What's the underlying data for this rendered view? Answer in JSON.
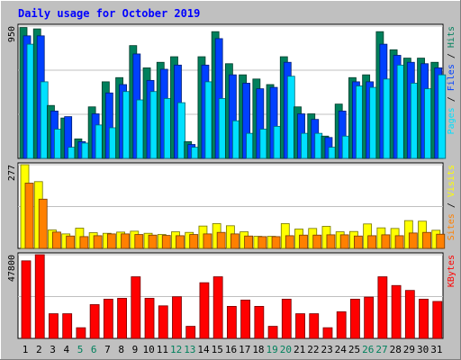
{
  "title": "Daily usage for October 2019",
  "colors": {
    "background": "#c0c0c0",
    "plot_bg": "#ffffff",
    "title": "#0000ff",
    "hits": "#00805c",
    "files": "#0040ff",
    "pages": "#00e0ff",
    "visits": "#ffff00",
    "sites": "#ff8000",
    "kbytes": "#ff0000",
    "weekend_label": "#00805c",
    "weekday_label": "#000000"
  },
  "chart_data": [
    {
      "type": "bar",
      "name": "hits-files-pages",
      "ymax_label": "950",
      "ylim": [
        0,
        950
      ],
      "legend": [
        {
          "label": "Hits",
          "color_key": "hits"
        },
        {
          "label": "Files",
          "color_key": "files"
        },
        {
          "label": "Pages",
          "color_key": "pages"
        }
      ],
      "categories": [
        "1",
        "2",
        "3",
        "4",
        "5",
        "6",
        "7",
        "8",
        "9",
        "10",
        "11",
        "12",
        "13",
        "14",
        "15",
        "16",
        "17",
        "18",
        "19",
        "20",
        "21",
        "22",
        "23",
        "24",
        "25",
        "26",
        "27",
        "28",
        "29",
        "30",
        "31"
      ],
      "series": [
        {
          "name": "Hits",
          "values": [
            940,
            930,
            380,
            290,
            140,
            370,
            550,
            580,
            810,
            650,
            690,
            730,
            120,
            730,
            910,
            680,
            600,
            570,
            530,
            730,
            370,
            320,
            160,
            390,
            580,
            600,
            910,
            780,
            720,
            720,
            690
          ]
        },
        {
          "name": "Files",
          "values": [
            880,
            880,
            340,
            300,
            120,
            320,
            470,
            530,
            750,
            560,
            640,
            670,
            100,
            670,
            860,
            600,
            540,
            500,
            510,
            690,
            320,
            280,
            150,
            340,
            550,
            550,
            820,
            740,
            690,
            680,
            650
          ]
        },
        {
          "name": "Pages",
          "values": [
            820,
            550,
            210,
            80,
            110,
            240,
            220,
            480,
            420,
            480,
            430,
            400,
            80,
            550,
            430,
            270,
            180,
            210,
            230,
            590,
            180,
            180,
            80,
            160,
            520,
            510,
            570,
            670,
            540,
            500,
            600
          ]
        }
      ]
    },
    {
      "type": "bar",
      "name": "visits-sites",
      "ymax_label": "277",
      "ylim": [
        0,
        277
      ],
      "legend": [
        {
          "label": "Visits",
          "color_key": "visits"
        },
        {
          "label": "Sites",
          "color_key": "sites"
        }
      ],
      "categories": [
        "1",
        "2",
        "3",
        "4",
        "5",
        "6",
        "7",
        "8",
        "9",
        "10",
        "11",
        "12",
        "13",
        "14",
        "15",
        "16",
        "17",
        "18",
        "19",
        "20",
        "21",
        "22",
        "23",
        "24",
        "25",
        "26",
        "27",
        "28",
        "29",
        "30",
        "31"
      ],
      "series": [
        {
          "name": "Visits",
          "values": [
            277,
            221,
            61,
            48,
            67,
            52,
            50,
            54,
            57,
            50,
            46,
            55,
            53,
            74,
            82,
            75,
            55,
            40,
            40,
            82,
            64,
            66,
            73,
            55,
            56,
            81,
            68,
            66,
            92,
            90,
            60
          ]
        },
        {
          "name": "Sites",
          "values": [
            216,
            163,
            54,
            41,
            39,
            42,
            48,
            48,
            46,
            44,
            43,
            42,
            46,
            48,
            53,
            48,
            41,
            39,
            39,
            42,
            44,
            44,
            45,
            45,
            41,
            42,
            45,
            42,
            51,
            53,
            47
          ]
        }
      ]
    },
    {
      "type": "bar",
      "name": "kbytes",
      "ymax_label": "47800",
      "ylim": [
        0,
        47800
      ],
      "legend": [
        {
          "label": "KBytes",
          "color_key": "kbytes"
        }
      ],
      "categories": [
        "1",
        "2",
        "3",
        "4",
        "5",
        "6",
        "7",
        "8",
        "9",
        "10",
        "11",
        "12",
        "13",
        "14",
        "15",
        "16",
        "17",
        "18",
        "19",
        "20",
        "21",
        "22",
        "23",
        "24",
        "25",
        "26",
        "27",
        "28",
        "29",
        "30",
        "31"
      ],
      "series": [
        {
          "name": "KBytes",
          "values": [
            44300,
            47800,
            14100,
            14100,
            6100,
            19300,
            22400,
            22900,
            35200,
            22900,
            18600,
            23800,
            6900,
            31800,
            35200,
            18300,
            21900,
            18300,
            6900,
            22400,
            14100,
            14100,
            6100,
            15200,
            22400,
            23600,
            35200,
            30200,
            27400,
            22400,
            21100
          ]
        }
      ]
    }
  ],
  "x_axis": {
    "labels": [
      "1",
      "2",
      "3",
      "4",
      "5",
      "6",
      "7",
      "8",
      "9",
      "10",
      "11",
      "12",
      "13",
      "14",
      "15",
      "16",
      "17",
      "18",
      "19",
      "20",
      "21",
      "22",
      "23",
      "24",
      "25",
      "26",
      "27",
      "28",
      "29",
      "30",
      "31"
    ],
    "weekend_days": [
      "5",
      "6",
      "12",
      "13",
      "19",
      "20",
      "26",
      "27"
    ]
  }
}
